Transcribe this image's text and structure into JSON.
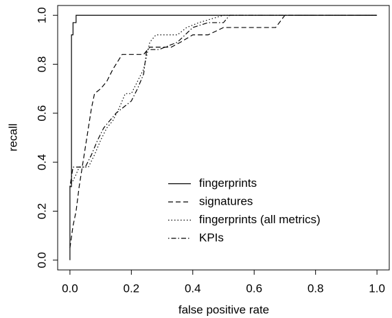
{
  "chart_data": {
    "type": "line",
    "x_label": "false positive rate",
    "y_label": "recall",
    "xlim": [
      -0.04,
      1.04
    ],
    "ylim": [
      -0.04,
      1.04
    ],
    "xticks": [
      {
        "value": 0,
        "label": "0.0"
      },
      0.2,
      0.4,
      0.6,
      0.8,
      {
        "value": 1,
        "label": "1.0"
      }
    ],
    "yticks": [
      {
        "value": 0,
        "label": "0.0"
      },
      0.2,
      0.4,
      0.6,
      0.8,
      {
        "value": 1,
        "label": "1.0"
      }
    ],
    "grid": false,
    "legend": "bottom-right",
    "series": [
      {
        "name": "fingerprints",
        "color": "#000000",
        "dash": "solid",
        "x": [
          0,
          0,
          0.005,
          0.005,
          0.01,
          0.01,
          0.02,
          0.02,
          1
        ],
        "values": [
          0,
          0.3,
          0.3,
          0.92,
          0.92,
          0.97,
          0.97,
          1,
          1
        ]
      },
      {
        "name": "signatures",
        "color": "#000000",
        "dash": "dashed",
        "x": [
          0,
          0.01,
          0.02,
          0.03,
          0.04,
          0.05,
          0.06,
          0.07,
          0.08,
          0.1,
          0.12,
          0.14,
          0.17,
          0.24,
          0.26,
          0.33,
          0.36,
          0.4,
          0.45,
          0.5,
          0.67,
          0.7,
          1
        ],
        "values": [
          0.05,
          0.14,
          0.2,
          0.3,
          0.38,
          0.46,
          0.54,
          0.62,
          0.68,
          0.7,
          0.73,
          0.78,
          0.84,
          0.84,
          0.87,
          0.87,
          0.89,
          0.92,
          0.92,
          0.95,
          0.95,
          1,
          1
        ]
      },
      {
        "name": "fingerprints (all metrics)",
        "color": "#000000",
        "dash": "dotted",
        "x": [
          0,
          0.02,
          0.03,
          0.06,
          0.08,
          0.1,
          0.12,
          0.14,
          0.16,
          0.18,
          0.2,
          0.22,
          0.24,
          0.26,
          0.28,
          0.35,
          0.38,
          0.42,
          0.5,
          1
        ],
        "values": [
          0.3,
          0.35,
          0.38,
          0.38,
          0.43,
          0.49,
          0.54,
          0.57,
          0.62,
          0.68,
          0.68,
          0.73,
          0.78,
          0.89,
          0.92,
          0.92,
          0.95,
          0.97,
          1,
          1
        ]
      },
      {
        "name": "KPIs",
        "color": "#000000",
        "dash": "dotdash",
        "x": [
          0,
          0.01,
          0.05,
          0.07,
          0.09,
          0.11,
          0.13,
          0.15,
          0.17,
          0.2,
          0.22,
          0.24,
          0.25,
          0.29,
          0.35,
          0.4,
          0.45,
          0.5,
          0.52,
          1
        ],
        "values": [
          0.3,
          0.38,
          0.38,
          0.43,
          0.49,
          0.54,
          0.57,
          0.6,
          0.62,
          0.65,
          0.7,
          0.76,
          0.86,
          0.86,
          0.89,
          0.95,
          0.97,
          0.97,
          1,
          1
        ]
      }
    ]
  }
}
